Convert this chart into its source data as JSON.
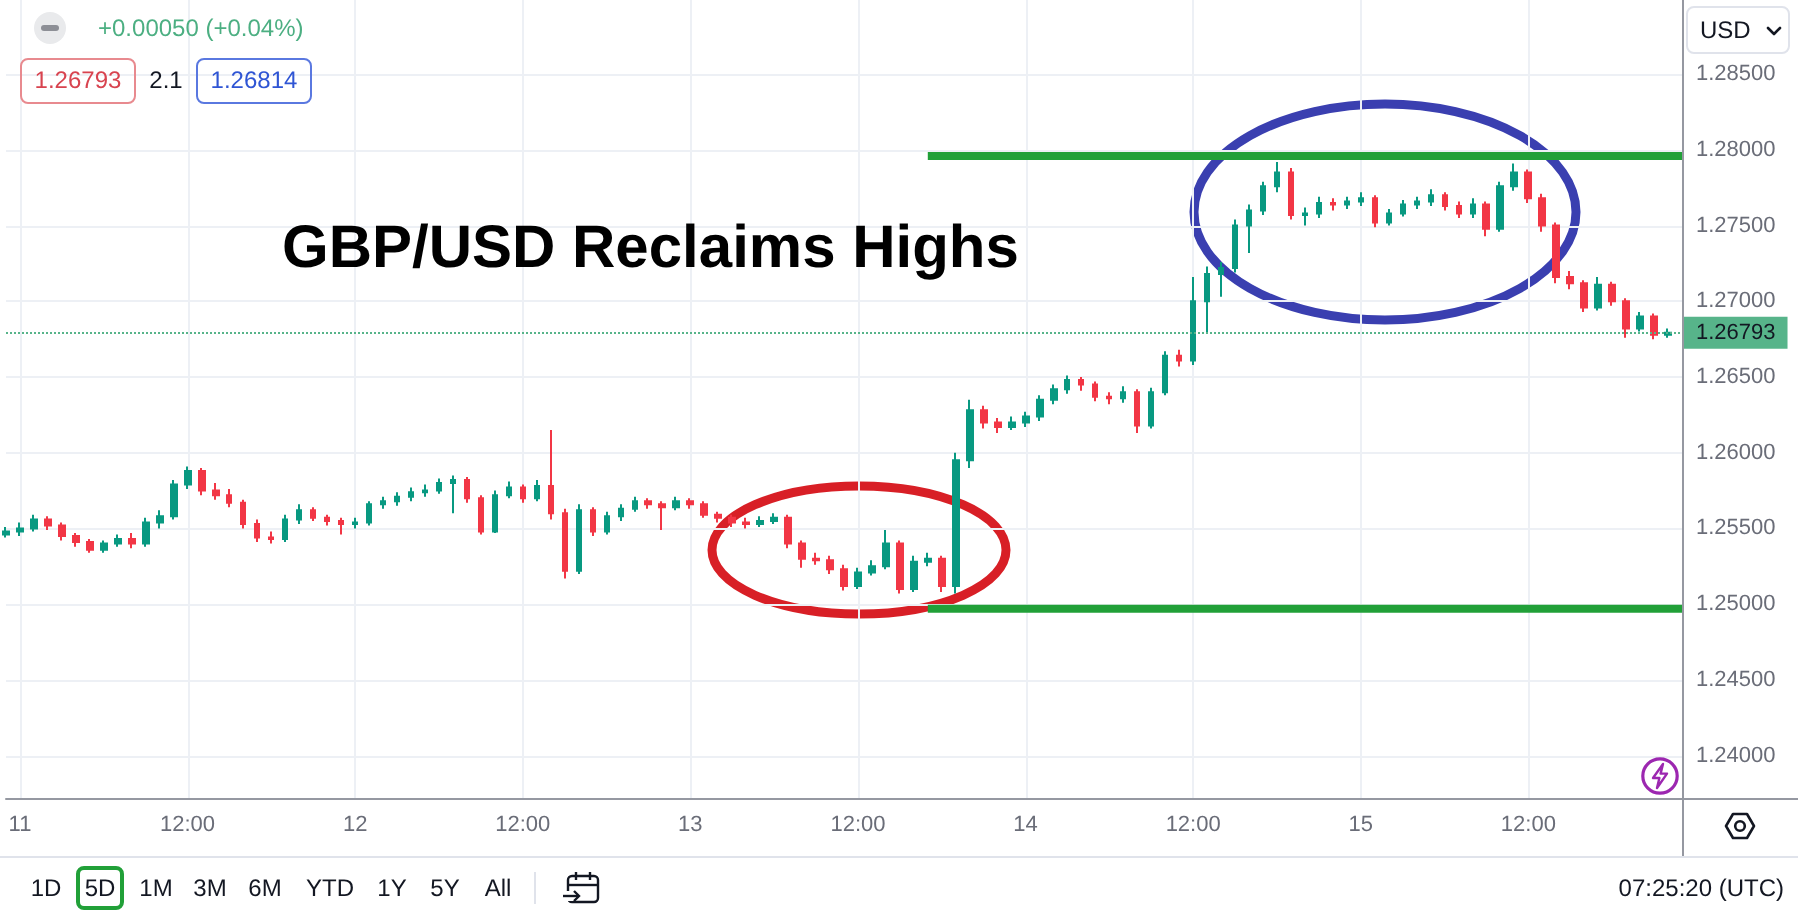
{
  "chart_data": {
    "type": "candlestick",
    "title": "GBP/USD Reclaims Highs",
    "annotations": [
      "+0.00050 (+0.04%)",
      "1.26793",
      "2.1",
      "1.26814",
      "USD",
      "1D",
      "5D",
      "1M",
      "3M",
      "6M",
      "YTD",
      "1Y",
      "5Y",
      "All",
      "07:25:20 (UTC)"
    ],
    "categories": [
      null,
      "11",
      null,
      null,
      null,
      null,
      null,
      null,
      null,
      null,
      null,
      null,
      null,
      "12:00",
      null,
      null,
      null,
      null,
      null,
      null,
      null,
      null,
      null,
      null,
      null,
      "12",
      null,
      null,
      null,
      null,
      null,
      null,
      null,
      null,
      null,
      null,
      null,
      "12:00",
      null,
      null,
      null,
      null,
      null,
      null,
      null,
      null,
      null,
      null,
      null,
      "13",
      null,
      null,
      null,
      null,
      null,
      null,
      null,
      null,
      null,
      null,
      null,
      "12:00",
      null,
      null,
      null,
      null,
      null,
      null,
      null,
      null,
      null,
      null,
      null,
      "14",
      null,
      null,
      null,
      null,
      null,
      null,
      null,
      null,
      null,
      null,
      null,
      "12:00",
      null,
      null,
      null,
      null,
      null,
      null,
      null,
      null,
      null,
      null,
      null,
      "15",
      null,
      null,
      null,
      null,
      null,
      null,
      null,
      null,
      null,
      null,
      null,
      "12:00",
      null,
      null,
      null,
      null,
      null,
      null,
      null,
      null,
      null,
      null,
      null
    ],
    "ylim": [
      1.2372,
      1.2899
    ],
    "yticks": [
      {
        "value": 1.24,
        "label": "1.24000"
      },
      {
        "value": 1.245,
        "label": "1.24500"
      },
      {
        "value": 1.25,
        "label": "1.25000"
      },
      {
        "value": 1.255,
        "label": "1.25500"
      },
      {
        "value": 1.26,
        "label": "1.26000"
      },
      {
        "value": 1.265,
        "label": "1.26500"
      },
      {
        "value": 1.27,
        "label": "1.27000"
      },
      {
        "value": 1.275,
        "label": "1.27500"
      },
      {
        "value": 1.28,
        "label": "1.28000"
      },
      {
        "value": 1.285,
        "label": "1.28500"
      }
    ],
    "grid": true,
    "ref_lines": [
      {
        "axis": "y",
        "value": 1.26793,
        "label": "1.26793",
        "color": "#57b48a",
        "line_style": "dotted"
      }
    ],
    "series": [
      {
        "ohlc": [
          [
            1.2546,
            1.2551,
            1.2544,
            1.2548
          ],
          [
            1.2548,
            1.2554,
            1.2545,
            1.255
          ],
          [
            1.255,
            1.2559,
            1.2548,
            1.2556
          ],
          [
            1.2556,
            1.2558,
            1.2549,
            1.2552
          ],
          [
            1.2552,
            1.2554,
            1.2542,
            1.2545
          ],
          [
            1.2545,
            1.2547,
            1.2538,
            1.2541
          ],
          [
            1.2541,
            1.2543,
            1.2534,
            1.2536
          ],
          [
            1.2536,
            1.2542,
            1.2534,
            1.254
          ],
          [
            1.254,
            1.2546,
            1.2538,
            1.2543
          ],
          [
            1.2543,
            1.2547,
            1.2537,
            1.254
          ],
          [
            1.254,
            1.2557,
            1.2538,
            1.2554
          ],
          [
            1.2554,
            1.2562,
            1.255,
            1.2558
          ],
          [
            1.2558,
            1.2582,
            1.2556,
            1.2579
          ],
          [
            1.2579,
            1.2591,
            1.2576,
            1.2588
          ],
          [
            1.2588,
            1.259,
            1.2572,
            1.2575
          ],
          [
            1.2575,
            1.258,
            1.2569,
            1.2572
          ],
          [
            1.2572,
            1.2576,
            1.2564,
            1.2567
          ],
          [
            1.2567,
            1.2569,
            1.255,
            1.2553
          ],
          [
            1.2553,
            1.2556,
            1.2541,
            1.2544
          ],
          [
            1.2544,
            1.2548,
            1.254,
            1.2543
          ],
          [
            1.2543,
            1.2559,
            1.2541,
            1.2556
          ],
          [
            1.2556,
            1.2566,
            1.2553,
            1.2562
          ],
          [
            1.2562,
            1.2564,
            1.2555,
            1.2557
          ],
          [
            1.2557,
            1.2559,
            1.2552,
            1.2555
          ],
          [
            1.2555,
            1.2557,
            1.2546,
            1.2553
          ],
          [
            1.2553,
            1.2557,
            1.255,
            1.2554
          ],
          [
            1.2554,
            1.2568,
            1.2552,
            1.2566
          ],
          [
            1.2566,
            1.2571,
            1.2563,
            1.2568
          ],
          [
            1.2568,
            1.2574,
            1.2565,
            1.2571
          ],
          [
            1.2571,
            1.2577,
            1.2568,
            1.2574
          ],
          [
            1.2574,
            1.2579,
            1.2571,
            1.2575
          ],
          [
            1.2575,
            1.2583,
            1.2573,
            1.258
          ],
          [
            1.258,
            1.2585,
            1.256,
            1.2582
          ],
          [
            1.2582,
            1.2584,
            1.2567,
            1.257
          ],
          [
            1.257,
            1.2572,
            1.2546,
            1.2548
          ],
          [
            1.2548,
            1.2575,
            1.2547,
            1.2572
          ],
          [
            1.2572,
            1.2581,
            1.257,
            1.2577
          ],
          [
            1.2577,
            1.2579,
            1.2567,
            1.257
          ],
          [
            1.257,
            1.2582,
            1.2568,
            1.2578
          ],
          [
            1.2578,
            1.2615,
            1.2556,
            1.256
          ],
          [
            1.256,
            1.2563,
            1.2517,
            1.2522
          ],
          [
            1.2522,
            1.2566,
            1.252,
            1.2562
          ],
          [
            1.2562,
            1.2564,
            1.2545,
            1.2548
          ],
          [
            1.2548,
            1.2561,
            1.2546,
            1.2558
          ],
          [
            1.2558,
            1.2566,
            1.2555,
            1.2563
          ],
          [
            1.2563,
            1.2571,
            1.2561,
            1.2568
          ],
          [
            1.2568,
            1.257,
            1.2563,
            1.2566
          ],
          [
            1.2566,
            1.2568,
            1.2549,
            1.2564
          ],
          [
            1.2564,
            1.2571,
            1.2562,
            1.2568
          ],
          [
            1.2568,
            1.257,
            1.2563,
            1.2566
          ],
          [
            1.2566,
            1.2568,
            1.2557,
            1.2559
          ],
          [
            1.2559,
            1.2561,
            1.2554,
            1.2557
          ],
          [
            1.2557,
            1.2559,
            1.2551,
            1.2554
          ],
          [
            1.2554,
            1.2557,
            1.255,
            1.2553
          ],
          [
            1.2553,
            1.2558,
            1.2551,
            1.2555
          ],
          [
            1.2555,
            1.256,
            1.2553,
            1.2557
          ],
          [
            1.2557,
            1.2559,
            1.2537,
            1.254
          ],
          [
            1.254,
            1.2542,
            1.2524,
            1.253
          ],
          [
            1.253,
            1.2534,
            1.2526,
            1.2529
          ],
          [
            1.2529,
            1.2532,
            1.252,
            1.2523
          ],
          [
            1.2523,
            1.2526,
            1.2509,
            1.2512
          ],
          [
            1.2512,
            1.2524,
            1.251,
            1.2521
          ],
          [
            1.2521,
            1.2529,
            1.2519,
            1.2525
          ],
          [
            1.2525,
            1.2549,
            1.2523,
            1.254
          ],
          [
            1.254,
            1.2542,
            1.2507,
            1.251
          ],
          [
            1.251,
            1.2532,
            1.2508,
            1.2528
          ],
          [
            1.2528,
            1.2534,
            1.2525,
            1.253
          ],
          [
            1.253,
            1.2532,
            1.2508,
            1.2512
          ],
          [
            1.2512,
            1.26,
            1.2507,
            1.2595
          ],
          [
            1.2595,
            1.2635,
            1.259,
            1.2628
          ],
          [
            1.2628,
            1.2631,
            1.2616,
            1.262
          ],
          [
            1.262,
            1.2623,
            1.2613,
            1.2617
          ],
          [
            1.2617,
            1.2624,
            1.2615,
            1.262
          ],
          [
            1.262,
            1.2627,
            1.2617,
            1.2624
          ],
          [
            1.2624,
            1.2638,
            1.2621,
            1.2635
          ],
          [
            1.2635,
            1.2645,
            1.2632,
            1.2642
          ],
          [
            1.2642,
            1.2651,
            1.2639,
            1.2648
          ],
          [
            1.2648,
            1.265,
            1.2641,
            1.2645
          ],
          [
            1.2645,
            1.2647,
            1.2634,
            1.2637
          ],
          [
            1.2637,
            1.264,
            1.2632,
            1.2636
          ],
          [
            1.2636,
            1.2644,
            1.2633,
            1.264
          ],
          [
            1.264,
            1.2642,
            1.2613,
            1.2618
          ],
          [
            1.2618,
            1.2643,
            1.2616,
            1.264
          ],
          [
            1.264,
            1.2667,
            1.2638,
            1.2664
          ],
          [
            1.2664,
            1.2668,
            1.2657,
            1.2661
          ],
          [
            1.2661,
            1.2716,
            1.2658,
            1.27
          ],
          [
            1.27,
            1.2723,
            1.2679,
            1.2718
          ],
          [
            1.2718,
            1.2726,
            1.2703,
            1.2722
          ],
          [
            1.2722,
            1.2754,
            1.2719,
            1.275
          ],
          [
            1.275,
            1.2764,
            1.2732,
            1.276
          ],
          [
            1.276,
            1.2779,
            1.2757,
            1.2776
          ],
          [
            1.2776,
            1.2792,
            1.2772,
            1.2785
          ],
          [
            1.2785,
            1.2788,
            1.2754,
            1.2757
          ],
          [
            1.2757,
            1.2762,
            1.275,
            1.2758
          ],
          [
            1.2758,
            1.2769,
            1.2755,
            1.2765
          ],
          [
            1.2765,
            1.2768,
            1.276,
            1.2764
          ],
          [
            1.2764,
            1.2769,
            1.2761,
            1.2766
          ],
          [
            1.2766,
            1.2772,
            1.2763,
            1.2768
          ],
          [
            1.2768,
            1.277,
            1.2749,
            1.2752
          ],
          [
            1.2752,
            1.2761,
            1.275,
            1.2758
          ],
          [
            1.2758,
            1.2767,
            1.2756,
            1.2764
          ],
          [
            1.2764,
            1.2769,
            1.2761,
            1.2766
          ],
          [
            1.2766,
            1.2774,
            1.2763,
            1.277
          ],
          [
            1.277,
            1.2772,
            1.276,
            1.2763
          ],
          [
            1.2763,
            1.2766,
            1.2755,
            1.2758
          ],
          [
            1.2758,
            1.2768,
            1.2755,
            1.2764
          ],
          [
            1.2764,
            1.2766,
            1.2743,
            1.2748
          ],
          [
            1.2748,
            1.2779,
            1.2746,
            1.2776
          ],
          [
            1.2776,
            1.2791,
            1.2773,
            1.2785
          ],
          [
            1.2785,
            1.2787,
            1.2765,
            1.2768
          ],
          [
            1.2768,
            1.2771,
            1.2746,
            1.275
          ],
          [
            1.275,
            1.2752,
            1.2712,
            1.2716
          ],
          [
            1.2716,
            1.272,
            1.2708,
            1.2712
          ],
          [
            1.2712,
            1.2714,
            1.2693,
            1.2696
          ],
          [
            1.2696,
            1.2716,
            1.2694,
            1.2711
          ],
          [
            1.2711,
            1.2713,
            1.2697,
            1.27
          ],
          [
            1.27,
            1.2702,
            1.2676,
            1.2682
          ],
          [
            1.2682,
            1.2693,
            1.268,
            1.269
          ],
          [
            1.269,
            1.2692,
            1.2675,
            1.2678
          ],
          [
            1.2678,
            1.2682,
            1.2676,
            1.26793
          ],
          null
        ],
        "colors": [
          "#089981",
          "#089981",
          "#089981",
          "#f23645",
          "#f23645",
          "#f23645",
          "#f23645",
          "#089981",
          "#089981",
          "#f23645",
          "#089981",
          "#089981",
          "#089981",
          "#089981",
          "#f23645",
          "#f23645",
          "#f23645",
          "#f23645",
          "#f23645",
          "#f23645",
          "#089981",
          "#089981",
          "#f23645",
          "#f23645",
          "#f23645",
          "#089981",
          "#089981",
          "#089981",
          "#089981",
          "#089981",
          "#089981",
          "#089981",
          "#089981",
          "#f23645",
          "#f23645",
          "#089981",
          "#089981",
          "#f23645",
          "#089981",
          "#f23645",
          "#f23645",
          "#089981",
          "#f23645",
          "#089981",
          "#089981",
          "#089981",
          "#f23645",
          "#f23645",
          "#089981",
          "#f23645",
          "#f23645",
          "#f23645",
          "#f23645",
          "#f23645",
          "#089981",
          "#089981",
          "#f23645",
          "#f23645",
          "#f23645",
          "#f23645",
          "#f23645",
          "#089981",
          "#089981",
          "#089981",
          "#f23645",
          "#089981",
          "#089981",
          "#f23645",
          "#089981",
          "#089981",
          "#f23645",
          "#f23645",
          "#089981",
          "#089981",
          "#089981",
          "#089981",
          "#089981",
          "#f23645",
          "#f23645",
          "#f23645",
          "#089981",
          "#f23645",
          "#089981",
          "#089981",
          "#f23645",
          "#089981",
          "#089981",
          "#089981",
          "#089981",
          "#089981",
          "#089981",
          "#089981",
          "#f23645",
          "#089981",
          "#089981",
          "#f23645",
          "#089981",
          "#089981",
          "#f23645",
          "#089981",
          "#089981",
          "#089981",
          "#089981",
          "#f23645",
          "#f23645",
          "#089981",
          "#f23645",
          "#089981",
          "#089981",
          "#f23645",
          "#f23645",
          "#f23645",
          "#f23645",
          "#f23645",
          "#089981",
          "#f23645",
          "#f23645",
          "#089981",
          "#f23645",
          "#089981",
          null
        ]
      },
      {
        "type": "line",
        "color": "#21a038",
        "values": [
          null,
          null,
          null,
          null,
          null,
          null,
          null,
          null,
          null,
          null,
          null,
          null,
          null,
          null,
          null,
          null,
          null,
          null,
          null,
          null,
          null,
          null,
          null,
          null,
          null,
          null,
          null,
          null,
          null,
          null,
          null,
          null,
          null,
          null,
          null,
          null,
          null,
          null,
          null,
          null,
          null,
          null,
          null,
          null,
          null,
          null,
          null,
          null,
          null,
          null,
          null,
          null,
          null,
          null,
          null,
          null,
          null,
          null,
          null,
          null,
          null,
          null,
          null,
          null,
          null,
          null,
          1.2796,
          1.2796,
          1.2796,
          1.2796,
          1.2796,
          1.2796,
          1.2796,
          1.2796,
          1.2796,
          1.2796,
          1.2796,
          1.2796,
          1.2796,
          1.2796,
          1.2796,
          1.2796,
          1.2796,
          1.2796,
          1.2796,
          1.2796,
          1.2796,
          1.2796,
          1.2796,
          1.2796,
          1.2796,
          1.2796,
          1.2796,
          1.2796,
          1.2796,
          1.2796,
          1.2796,
          1.2796,
          1.2796,
          1.2796,
          1.2796,
          1.2796,
          1.2796,
          1.2796,
          1.2796,
          1.2796,
          1.2796,
          1.2796,
          1.2796,
          1.2796,
          1.2796,
          1.2796,
          1.2796,
          1.2796,
          1.2796,
          1.2796,
          1.2796,
          1.2796,
          1.2796,
          1.2796,
          1.2796
        ]
      },
      {
        "type": "line",
        "color": "#21a038",
        "values": [
          null,
          null,
          null,
          null,
          null,
          null,
          null,
          null,
          null,
          null,
          null,
          null,
          null,
          null,
          null,
          null,
          null,
          null,
          null,
          null,
          null,
          null,
          null,
          null,
          null,
          null,
          null,
          null,
          null,
          null,
          null,
          null,
          null,
          null,
          null,
          null,
          null,
          null,
          null,
          null,
          null,
          null,
          null,
          null,
          null,
          null,
          null,
          null,
          null,
          null,
          null,
          null,
          null,
          null,
          null,
          null,
          null,
          null,
          null,
          null,
          null,
          null,
          null,
          null,
          null,
          null,
          1.2497,
          1.2497,
          1.2497,
          1.2497,
          1.2497,
          1.2497,
          1.2497,
          1.2497,
          1.2497,
          1.2497,
          1.2497,
          1.2497,
          1.2497,
          1.2497,
          1.2497,
          1.2497,
          1.2497,
          1.2497,
          1.2497,
          1.2497,
          1.2497,
          1.2497,
          1.2497,
          1.2497,
          1.2497,
          1.2497,
          1.2497,
          1.2497,
          1.2497,
          1.2497,
          1.2497,
          1.2497,
          1.2497,
          1.2497,
          1.2497,
          1.2497,
          1.2497,
          1.2497,
          1.2497,
          1.2497,
          1.2497,
          1.2497,
          1.2497,
          1.2497,
          1.2497,
          1.2497,
          1.2497,
          1.2497,
          1.2497,
          1.2497,
          1.2497,
          1.2497,
          1.2497,
          1.2497,
          1.2497
        ]
      }
    ]
  }
}
